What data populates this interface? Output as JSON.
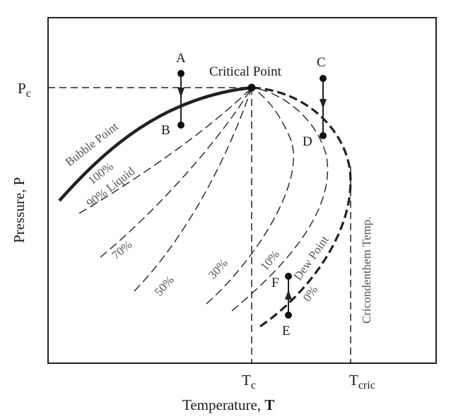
{
  "diagram": {
    "y_axis_label": "Pressure, P",
    "x_axis_label_prefix": "Temperature,",
    "x_axis_label_symbol": "T",
    "p_critical_label": "P",
    "p_critical_sub": "c",
    "t_critical_label": "T",
    "t_critical_sub": "c",
    "t_cric_label": "T",
    "t_cric_sub": "cric",
    "critical_point_label": "Critical Point",
    "bubble_point_label": "Bubble Point",
    "dew_point_label": "Dew Point",
    "cricondentherm_label": "Cricondenthem Temp.",
    "quality_labels": {
      "q100": "100%",
      "q90": "90% Liquid",
      "q70": "70%",
      "q50": "50%",
      "q30": "30%",
      "q10": "10%",
      "q0": "0%"
    },
    "points": {
      "A": "A",
      "B": "B",
      "C": "C",
      "D": "D",
      "E": "E",
      "F": "F"
    },
    "colors": {
      "ink": "#1a1a1a",
      "curve_label": "#555555",
      "background": "#ffffff"
    }
  }
}
